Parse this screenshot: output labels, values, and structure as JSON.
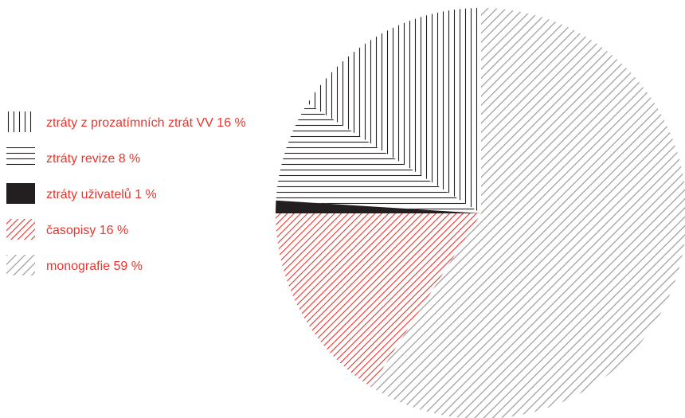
{
  "chart_data": {
    "type": "pie",
    "title": "",
    "legend_position": "left",
    "value_unit": "%",
    "slices": [
      {
        "label": "ztráty z prozatímních ztrát VV 16 %",
        "value": 16,
        "pattern": "vertical-lines",
        "color": "#231f20"
      },
      {
        "label": "ztráty revize 8 %",
        "value": 8,
        "pattern": "horizontal-lines",
        "color": "#231f20"
      },
      {
        "label": "ztráty uživatelů 1 %",
        "value": 1,
        "pattern": "solid",
        "color": "#231f20"
      },
      {
        "label": "časopisy 16 %",
        "value": 16,
        "pattern": "diagonal-lines",
        "color": "#e8352d"
      },
      {
        "label": "monografie 59 %",
        "value": 59,
        "pattern": "diagonal-lines",
        "color": "#9b9b9b"
      }
    ],
    "legend_text_color": "#e8352d"
  }
}
